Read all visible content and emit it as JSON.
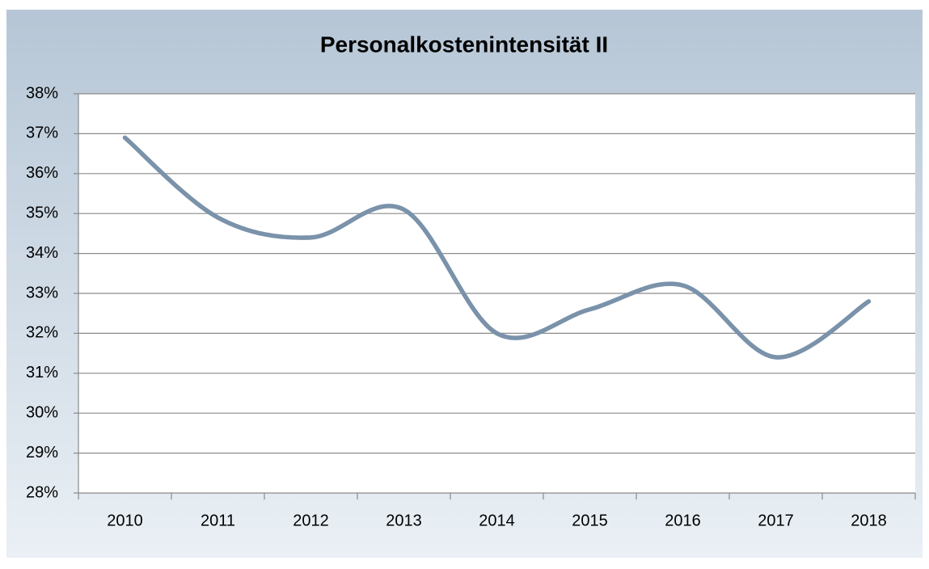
{
  "chart_data": {
    "type": "line",
    "title": "Personalkostenintensität II",
    "categories": [
      "2010",
      "2011",
      "2012",
      "2013",
      "2014",
      "2015",
      "2016",
      "2017",
      "2018"
    ],
    "series": [
      {
        "name": "Personalkostenintensität II",
        "color": "#7a92aa",
        "values": [
          36.9,
          34.9,
          34.4,
          35.1,
          32.0,
          32.6,
          33.2,
          31.4,
          32.8
        ]
      }
    ],
    "ylim": [
      28,
      38
    ],
    "yticks": [
      {
        "value": 28,
        "label": "28%"
      },
      {
        "value": 29,
        "label": "29%"
      },
      {
        "value": 30,
        "label": "30%"
      },
      {
        "value": 31,
        "label": "31%"
      },
      {
        "value": 32,
        "label": "32%"
      },
      {
        "value": 33,
        "label": "33%"
      },
      {
        "value": 34,
        "label": "34%"
      },
      {
        "value": 35,
        "label": "35%"
      },
      {
        "value": 36,
        "label": "36%"
      },
      {
        "value": 37,
        "label": "37%"
      },
      {
        "value": 38,
        "label": "38%"
      }
    ],
    "grid": true,
    "smooth": true
  }
}
